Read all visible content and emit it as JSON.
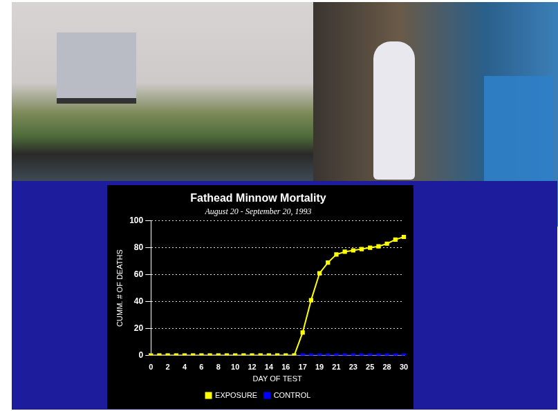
{
  "chart_data": {
    "type": "line",
    "title": "Fathead Minnow Mortality",
    "subtitle": "August 20 - September 20, 1993",
    "x_label": "DAY OF TEST",
    "y_label": "CUMM. # OF DEATHS",
    "categories": [
      "0",
      null,
      "2",
      null,
      "4",
      null,
      "6",
      null,
      "8",
      null,
      "10",
      null,
      "12",
      null,
      "14",
      null,
      "16",
      null,
      "17",
      null,
      "19",
      null,
      "21",
      null,
      "23",
      null,
      "25",
      null,
      "28",
      null,
      "30"
    ],
    "series": [
      {
        "name": "EXPOSURE",
        "color": "#ffff00",
        "marker": "square",
        "values": [
          0,
          0,
          0,
          0,
          0,
          0,
          0,
          0,
          0,
          0,
          0,
          0,
          0,
          0,
          0,
          0,
          0,
          0,
          17,
          41,
          61,
          69,
          75,
          77,
          78,
          79,
          80,
          81,
          83,
          86,
          88
        ]
      },
      {
        "name": "CONTROL",
        "color": "#0000ff",
        "marker": "square",
        "values": [
          0,
          0,
          0,
          0,
          0,
          0,
          0,
          0,
          0,
          0,
          0,
          0,
          0,
          0,
          0,
          0,
          0,
          0,
          0,
          0,
          0,
          0,
          0,
          0,
          0,
          0,
          0,
          0,
          0,
          0,
          0
        ]
      }
    ],
    "ylim": [
      0,
      100
    ],
    "yticks": [
      0,
      20,
      40,
      60,
      80,
      100
    ],
    "grid": true,
    "legend": "bottom"
  }
}
